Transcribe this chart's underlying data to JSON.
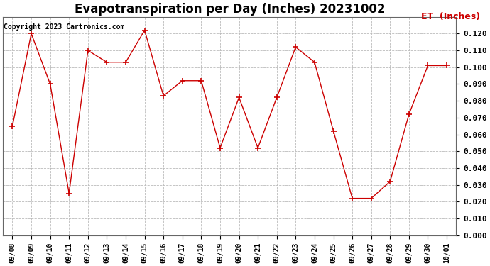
{
  "title": "Evapotranspiration per Day (Inches) 20231002",
  "legend_label": "ET  (Inches)",
  "copyright": "Copyright 2023 Cartronics.com",
  "x_labels": [
    "09/08",
    "09/09",
    "09/10",
    "09/11",
    "09/12",
    "09/13",
    "09/14",
    "09/15",
    "09/16",
    "09/17",
    "09/18",
    "09/19",
    "09/20",
    "09/21",
    "09/22",
    "09/23",
    "09/24",
    "09/25",
    "09/26",
    "09/27",
    "09/28",
    "09/29",
    "09/30",
    "10/01"
  ],
  "y_values": [
    0.065,
    0.12,
    0.09,
    0.025,
    0.11,
    0.103,
    0.103,
    0.122,
    0.083,
    0.092,
    0.092,
    0.052,
    0.082,
    0.052,
    0.082,
    0.112,
    0.103,
    0.062,
    0.022,
    0.022,
    0.032,
    0.072,
    0.101,
    0.101
  ],
  "line_color": "#cc0000",
  "marker": "+",
  "marker_size": 6,
  "ylim": [
    0.0,
    0.13
  ],
  "yticks": [
    0.0,
    0.01,
    0.02,
    0.03,
    0.04,
    0.05,
    0.06,
    0.07,
    0.08,
    0.09,
    0.1,
    0.11,
    0.12
  ],
  "bg_color": "#ffffff",
  "grid_color": "#bbbbbb",
  "title_fontsize": 12,
  "legend_color": "#cc0000",
  "copyright_fontsize": 7,
  "tick_fontsize": 8,
  "xtick_fontsize": 7
}
